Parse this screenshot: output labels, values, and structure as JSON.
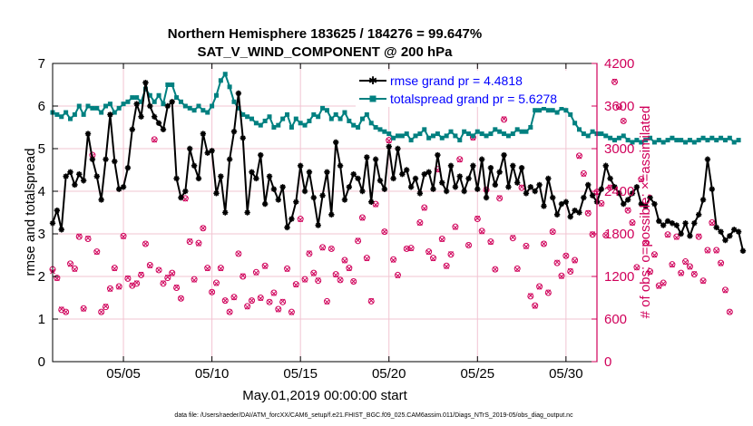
{
  "chart_data": {
    "type": "line",
    "title": "Northern Hemisphere 183625 / 184276 = 99.647%",
    "subtitle": "SAT_V_WIND_COMPONENT @ 200 hPa",
    "xlabel": "May.01,2019 00:00:00 start",
    "ylabel_left": "rmse and totalspread",
    "ylabel_right": "# of obs: o=possible; ×=assimilated",
    "xlim": [
      1,
      31.75
    ],
    "ylim_left": [
      0,
      7
    ],
    "ylim_right": [
      0,
      4200
    ],
    "x_ticks": [
      5,
      10,
      15,
      20,
      25,
      30
    ],
    "x_tick_labels": [
      "05/05",
      "05/10",
      "05/15",
      "05/20",
      "05/25",
      "05/30"
    ],
    "y_ticks_left": [
      "0",
      "1",
      "2",
      "3",
      "4",
      "5",
      "6",
      "7"
    ],
    "y_ticks_right": [
      "0",
      "600",
      "1200",
      "1800",
      "2400",
      "3000",
      "3600",
      "4200"
    ],
    "grid": true,
    "legend_position": "top-right",
    "colors": {
      "rmse": "#000000",
      "spread": "#008080",
      "obs": "#d0005a",
      "legend_text": "#0000ff",
      "grid": "#f2c4d2"
    },
    "footer": "data file: /Users/raeder/DAI/ATM_forcXX/CAM6_setup/f.e21.FHIST_BGC.f09_025.CAM6assim.011/Diags_NTrS_2019-05/obs_diag_output.nc",
    "series": [
      {
        "name": "rmse grand pr = 4.4818",
        "axis": "left",
        "x_start": 1.0,
        "x_step": 0.25,
        "values": [
          3.25,
          3.55,
          3.1,
          4.35,
          4.45,
          4.15,
          4.4,
          4.25,
          5.35,
          4.75,
          4.35,
          3.8,
          4.75,
          5.8,
          4.7,
          4.05,
          4.1,
          4.55,
          5.45,
          6.05,
          5.75,
          6.55,
          6.0,
          5.75,
          5.6,
          5.45,
          6.0,
          6.1,
          4.3,
          3.85,
          4.0,
          5.0,
          4.6,
          4.3,
          5.35,
          4.9,
          4.95,
          3.95,
          4.35,
          3.5,
          4.75,
          5.4,
          6.3,
          5.25,
          3.5,
          4.45,
          4.3,
          4.85,
          3.7,
          4.35,
          4.05,
          3.8,
          4.1,
          3.15,
          3.35,
          3.75,
          4.6,
          4.0,
          4.45,
          3.85,
          3.2,
          3.9,
          4.45,
          3.45,
          5.15,
          4.6,
          3.8,
          4.1,
          4.4,
          4.3,
          4.0,
          4.8,
          3.75,
          4.75,
          4.25,
          4.05,
          5.05,
          4.3,
          5.0,
          4.4,
          4.5,
          4.1,
          4.3,
          3.95,
          4.4,
          4.45,
          4.05,
          4.85,
          4.2,
          4.0,
          4.6,
          4.1,
          4.35,
          4.0,
          4.3,
          4.6,
          4.05,
          4.75,
          3.85,
          4.55,
          4.15,
          4.45,
          4.85,
          4.1,
          4.6,
          4.2,
          4.55,
          3.95,
          4.1,
          4.0,
          4.15,
          3.65,
          4.3,
          3.85,
          3.45,
          3.7,
          3.75,
          3.4,
          3.55,
          3.5,
          3.85,
          4.15,
          3.9,
          3.75,
          4.05,
          4.6,
          4.3,
          4.1,
          3.95,
          3.7,
          3.8,
          3.95,
          4.1,
          3.7,
          3.65,
          3.85,
          3.7,
          3.3,
          3.2,
          3.3,
          3.25,
          3.2,
          3.0,
          3.25,
          2.95,
          3.25,
          3.45,
          3.8,
          4.75,
          4.05,
          3.15,
          3.05,
          2.85,
          2.95,
          3.1,
          3.05,
          2.6
        ]
      },
      {
        "name": "totalspread grand pr = 5.6278",
        "axis": "left",
        "x_start": 1.0,
        "x_step": 0.25,
        "values": [
          5.85,
          5.8,
          5.75,
          5.85,
          5.7,
          5.8,
          6.0,
          5.8,
          6.0,
          5.95,
          5.95,
          5.85,
          6.0,
          6.05,
          5.85,
          5.95,
          6.05,
          6.1,
          6.2,
          6.2,
          6.1,
          6.4,
          6.25,
          6.1,
          6.25,
          6.05,
          6.5,
          6.5,
          6.2,
          6.1,
          6.0,
          5.95,
          5.9,
          6.0,
          5.9,
          5.85,
          6.0,
          6.25,
          6.6,
          6.75,
          6.45,
          6.1,
          5.95,
          5.8,
          5.75,
          5.7,
          5.6,
          5.55,
          5.65,
          5.75,
          5.5,
          5.55,
          5.7,
          5.8,
          5.5,
          5.7,
          5.6,
          5.55,
          5.65,
          5.8,
          5.75,
          5.95,
          5.9,
          5.7,
          5.8,
          5.7,
          5.85,
          5.65,
          5.55,
          5.5,
          5.7,
          5.8,
          5.6,
          5.5,
          5.45,
          5.4,
          5.35,
          5.25,
          5.3,
          5.3,
          5.35,
          5.2,
          5.3,
          5.35,
          5.45,
          5.25,
          5.3,
          5.35,
          5.25,
          5.3,
          5.4,
          5.3,
          5.2,
          5.4,
          5.35,
          5.3,
          5.4,
          5.35,
          5.3,
          5.35,
          5.45,
          5.4,
          5.35,
          5.3,
          5.35,
          5.45,
          5.4,
          5.4,
          5.5,
          5.9,
          5.9,
          5.95,
          5.9,
          5.9,
          5.85,
          5.95,
          5.9,
          5.8,
          5.6,
          5.45,
          5.35,
          5.3,
          5.4,
          5.35,
          5.35,
          5.3,
          5.25,
          5.2,
          5.25,
          5.3,
          5.2,
          5.15,
          5.2,
          5.15,
          5.2,
          5.25,
          5.15,
          5.2,
          5.15,
          5.2,
          5.25,
          5.2,
          5.2,
          5.15,
          5.2,
          5.15,
          5.2,
          5.25,
          5.2,
          5.25,
          5.2,
          5.25,
          5.2,
          5.25,
          5.15,
          5.2
        ]
      },
      {
        "name": "obs possible",
        "axis": "right",
        "x_start": 1.0,
        "x_step": 0.25,
        "marker": "o",
        "values": [
          1300,
          1180,
          730,
          700,
          1380,
          1310,
          1760,
          750,
          1730,
          2910,
          1550,
          700,
          770,
          1030,
          1320,
          1060,
          1770,
          1170,
          1070,
          1100,
          1220,
          1660,
          1360,
          3130,
          1290,
          1100,
          1180,
          1250,
          1040,
          890,
          2300,
          1690,
          1160,
          1670,
          1880,
          1320,
          980,
          1110,
          1320,
          860,
          700,
          910,
          1520,
          1200,
          780,
          860,
          1260,
          900,
          1350,
          840,
          970,
          740,
          840,
          1310,
          700,
          1090,
          2010,
          1160,
          1520,
          1250,
          1140,
          1610,
          850,
          1590,
          1230,
          1150,
          1430,
          1320,
          1130,
          1700,
          2030,
          1460,
          850,
          2220,
          3750,
          1830,
          3120,
          1440,
          1220,
          3650,
          1590,
          1600,
          3660,
          1960,
          2170,
          1550,
          1460,
          2710,
          1730,
          1350,
          1510,
          1900,
          2850,
          3750,
          1640,
          3160,
          2010,
          1840,
          2420,
          1690,
          1300,
          2300,
          3410,
          3680,
          1740,
          1310,
          2450,
          1630,
          920,
          790,
          1060,
          1660,
          970,
          1830,
          1390,
          1210,
          1490,
          1270,
          1430,
          2900,
          2650,
          2090,
          1790,
          2390,
          2230,
          1780,
          2450,
          3940,
          3590,
          3390,
          2130,
          1960,
          1330,
          2570,
          1670,
          1270,
          1510,
          1070,
          1110,
          1790,
          1370,
          1760,
          1250,
          1410,
          1340,
          1230,
          1760,
          1140,
          1570,
          1960,
          1570,
          1390,
          1010,
          700
        ]
      },
      {
        "name": "obs assimilated",
        "axis": "right",
        "x_start": 1.0,
        "x_step": 0.25,
        "marker": "×",
        "values": [
          1270,
          1170,
          740,
          700,
          1370,
          1300,
          1770,
          740,
          1740,
          2900,
          1540,
          700,
          780,
          1020,
          1310,
          1050,
          1760,
          1180,
          1080,
          1110,
          1230,
          1660,
          1350,
          3120,
          1290,
          1110,
          1190,
          1240,
          1050,
          890,
          2290,
          1700,
          1150,
          1660,
          1880,
          1310,
          980,
          1100,
          1310,
          860,
          700,
          900,
          1520,
          1210,
          770,
          860,
          1250,
          890,
          1340,
          840,
          960,
          730,
          850,
          1300,
          690,
          1080,
          2000,
          1150,
          1530,
          1240,
          1150,
          1600,
          840,
          1590,
          1220,
          1150,
          1420,
          1310,
          1130,
          1710,
          2020,
          1450,
          860,
          2210,
          3760,
          1830,
          3110,
          1430,
          1210,
          3640,
          1590,
          1590,
          3650,
          1950,
          2160,
          1540,
          1450,
          2700,
          1720,
          1340,
          1520,
          1890,
          2840,
          3740,
          1640,
          3150,
          2020,
          1830,
          2430,
          1680,
          1300,
          2310,
          3420,
          3680,
          1750,
          1300,
          2460,
          1620,
          930,
          780,
          1050,
          1660,
          980,
          1830,
          1400,
          1200,
          1490,
          1280,
          1420,
          2890,
          2640,
          2100,
          1800,
          2380,
          2220,
          1780,
          2460,
          3950,
          3580,
          3390,
          2140,
          1950,
          1320,
          2560,
          1680,
          1260,
          1500,
          1060,
          1100,
          1780,
          1360,
          1750,
          1240,
          1400,
          1330,
          1240,
          1770,
          1130,
          1560,
          1950,
          1560,
          1380,
          1000,
          700
        ]
      }
    ]
  }
}
